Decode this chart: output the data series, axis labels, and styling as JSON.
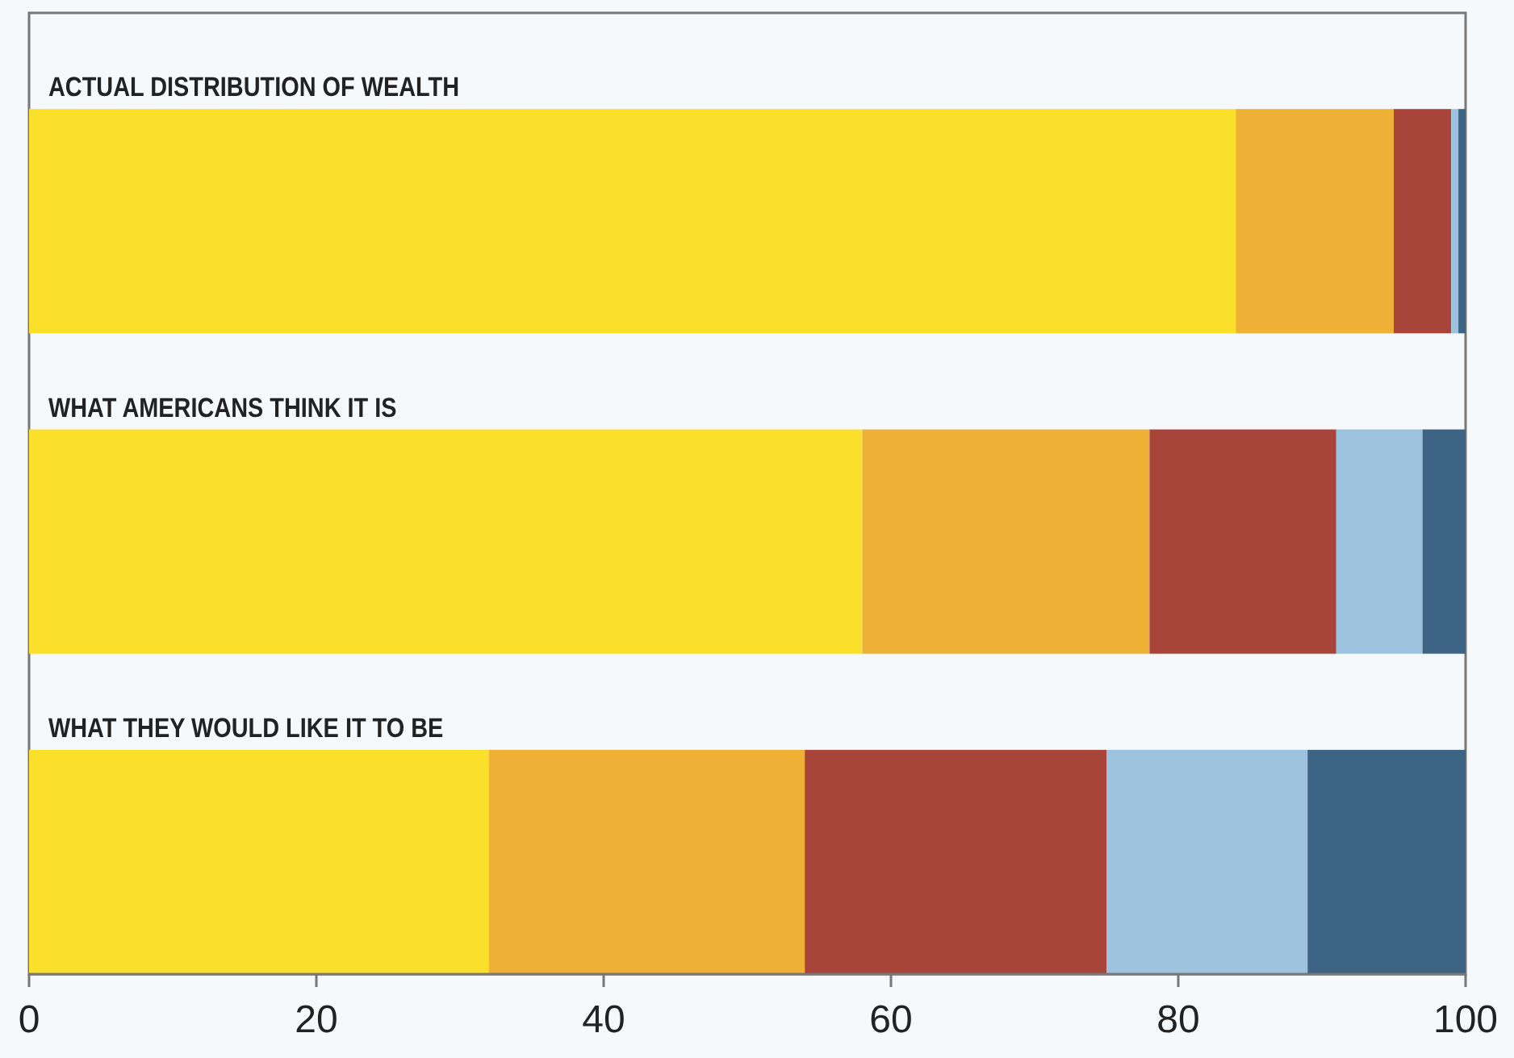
{
  "chart_data": {
    "type": "bar",
    "orientation": "horizontal",
    "stacked": true,
    "categories": [
      "ACTUAL DISTRIBUTION OF WEALTH",
      "WHAT AMERICANS THINK IT IS",
      "WHAT THEY WOULD LIKE IT TO BE"
    ],
    "series": [
      {
        "color": "#fbe02b",
        "values": [
          84,
          58,
          32
        ]
      },
      {
        "color": "#eeb135",
        "values": [
          11,
          20,
          22
        ]
      },
      {
        "color": "#a8443a",
        "values": [
          4,
          13,
          21
        ]
      },
      {
        "color": "#9cc2dd",
        "values": [
          0.5,
          6,
          14
        ]
      },
      {
        "color": "#3e6485",
        "values": [
          0.5,
          3,
          11
        ]
      }
    ],
    "xlim": [
      0,
      100
    ],
    "xticks": [
      0,
      20,
      40,
      60,
      80,
      100
    ],
    "grid": false
  }
}
